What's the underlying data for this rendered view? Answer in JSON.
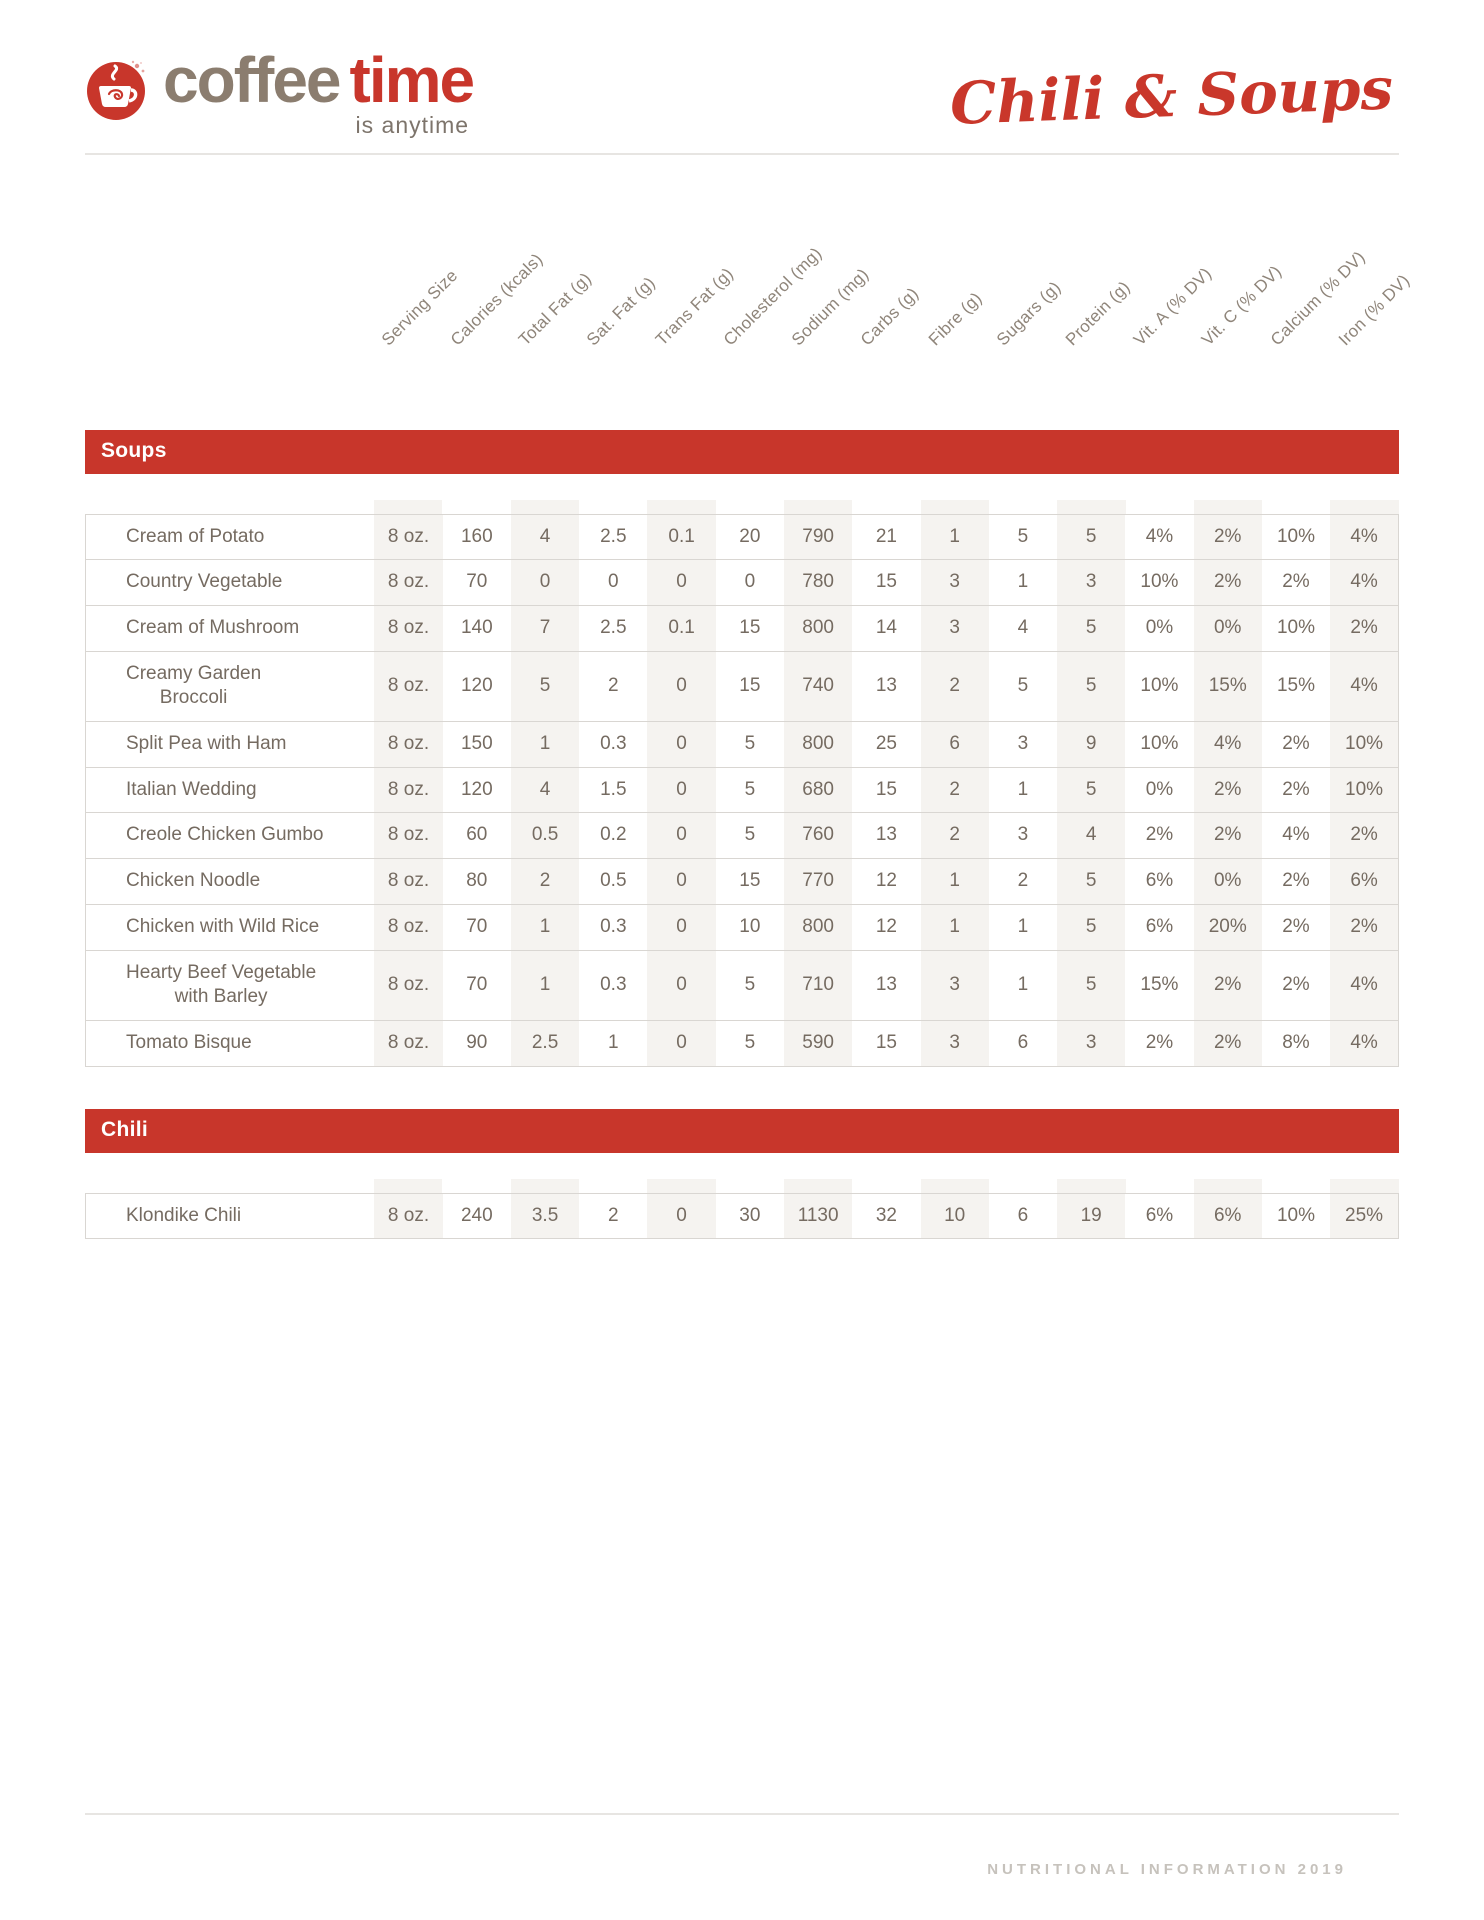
{
  "logo": {
    "word1": "coffee",
    "word2": "time",
    "tagline": "is anytime",
    "icon": "coffee-cup-icon"
  },
  "page_title": "Chili & Soups",
  "columns": [
    "Serving Size",
    "Calories (kcals)",
    "Total Fat (g)",
    "Sat. Fat (g)",
    "Trans Fat (g)",
    "Cholesterol (mg)",
    "Sodium (mg)",
    "Carbs (g)",
    "Fibre (g)",
    "Sugars (g)",
    "Protein (g)",
    "Vit. A (% DV)",
    "Vit. C (% DV)",
    "Calcium (% DV)",
    "Iron (% DV)"
  ],
  "sections": [
    {
      "title": "Soups",
      "rows": [
        {
          "name": "Cream of Potato",
          "values": [
            "8 oz.",
            "160",
            "4",
            "2.5",
            "0.1",
            "20",
            "790",
            "21",
            "1",
            "5",
            "5",
            "4%",
            "2%",
            "10%",
            "4%"
          ]
        },
        {
          "name": "Country Vegetable",
          "values": [
            "8 oz.",
            "70",
            "0",
            "0",
            "0",
            "0",
            "780",
            "15",
            "3",
            "1",
            "3",
            "10%",
            "2%",
            "2%",
            "4%"
          ]
        },
        {
          "name": "Cream of Mushroom",
          "values": [
            "8 oz.",
            "140",
            "7",
            "2.5",
            "0.1",
            "15",
            "800",
            "14",
            "3",
            "4",
            "5",
            "0%",
            "0%",
            "10%",
            "2%"
          ]
        },
        {
          "name": "Creamy Garden\nBroccoli",
          "values": [
            "8 oz.",
            "120",
            "5",
            "2",
            "0",
            "15",
            "740",
            "13",
            "2",
            "5",
            "5",
            "10%",
            "15%",
            "15%",
            "4%"
          ]
        },
        {
          "name": "Split Pea with Ham",
          "values": [
            "8 oz.",
            "150",
            "1",
            "0.3",
            "0",
            "5",
            "800",
            "25",
            "6",
            "3",
            "9",
            "10%",
            "4%",
            "2%",
            "10%"
          ]
        },
        {
          "name": "Italian Wedding",
          "values": [
            "8 oz.",
            "120",
            "4",
            "1.5",
            "0",
            "5",
            "680",
            "15",
            "2",
            "1",
            "5",
            "0%",
            "2%",
            "2%",
            "10%"
          ]
        },
        {
          "name": "Creole Chicken Gumbo",
          "values": [
            "8 oz.",
            "60",
            "0.5",
            "0.2",
            "0",
            "5",
            "760",
            "13",
            "2",
            "3",
            "4",
            "2%",
            "2%",
            "4%",
            "2%"
          ]
        },
        {
          "name": "Chicken Noodle",
          "values": [
            "8 oz.",
            "80",
            "2",
            "0.5",
            "0",
            "15",
            "770",
            "12",
            "1",
            "2",
            "5",
            "6%",
            "0%",
            "2%",
            "6%"
          ]
        },
        {
          "name": "Chicken with Wild Rice",
          "values": [
            "8 oz.",
            "70",
            "1",
            "0.3",
            "0",
            "10",
            "800",
            "12",
            "1",
            "1",
            "5",
            "6%",
            "20%",
            "2%",
            "2%"
          ]
        },
        {
          "name": "Hearty Beef Vegetable\nwith Barley",
          "values": [
            "8 oz.",
            "70",
            "1",
            "0.3",
            "0",
            "5",
            "710",
            "13",
            "3",
            "1",
            "5",
            "15%",
            "2%",
            "2%",
            "4%"
          ]
        },
        {
          "name": "Tomato Bisque",
          "values": [
            "8 oz.",
            "90",
            "2.5",
            "1",
            "0",
            "5",
            "590",
            "15",
            "3",
            "6",
            "3",
            "2%",
            "2%",
            "8%",
            "4%"
          ]
        }
      ]
    },
    {
      "title": "Chili",
      "rows": [
        {
          "name": "Klondike Chili",
          "values": [
            "8 oz.",
            "240",
            "3.5",
            "2",
            "0",
            "30",
            "1130",
            "32",
            "10",
            "6",
            "19",
            "6%",
            "6%",
            "10%",
            "25%"
          ]
        }
      ]
    }
  ],
  "footer": {
    "text": "NUTRITIONAL INFORMATION 2019"
  },
  "colors": {
    "accent_red": "#c8362b",
    "logo_brown": "#8b7d6f",
    "text_brown": "#756b61",
    "header_gray": "#8f857a",
    "column_shade": "#f5f3f0",
    "rule_gray": "#e7e5e2",
    "footer_gray": "#c6c2bc"
  }
}
